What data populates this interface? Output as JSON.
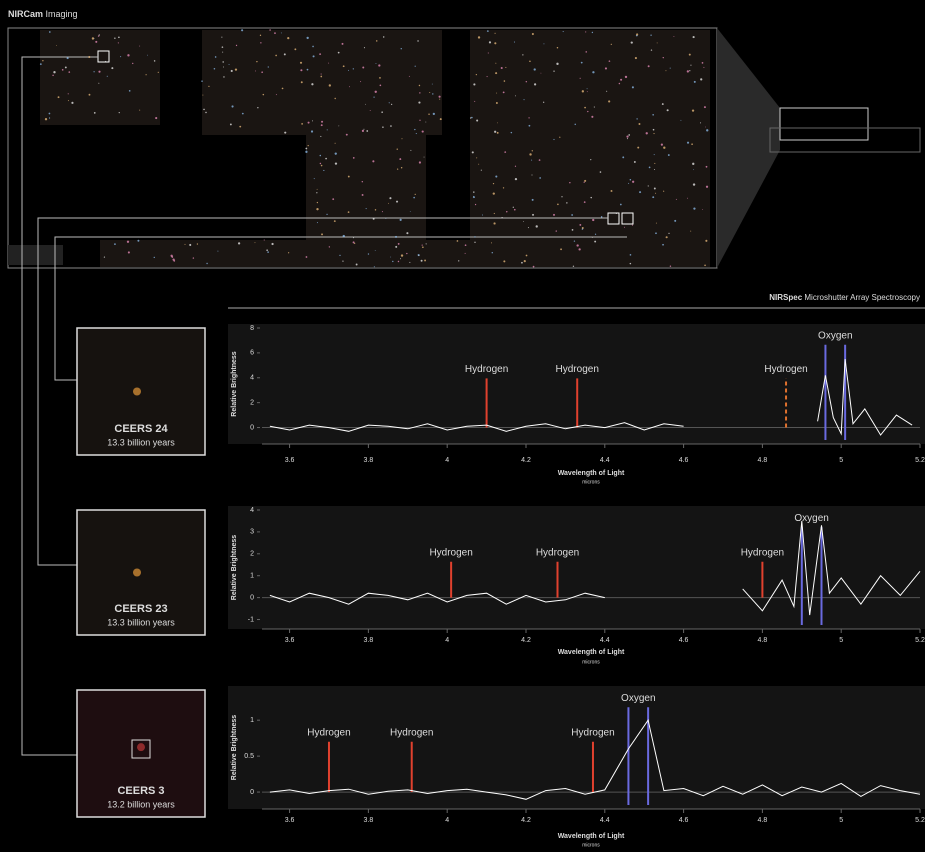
{
  "imaging": {
    "title_bold": "NIRCam",
    "title": "Imaging"
  },
  "spectroscopy": {
    "title_bold": "NIRSpec",
    "title": "Microshutter Array Spectroscopy"
  },
  "galaxies": [
    {
      "name": "CEERS 24",
      "age": "13.3 billion years"
    },
    {
      "name": "CEERS 23",
      "age": "13.3 billion years"
    },
    {
      "name": "CEERS 3",
      "age": "13.2 billion years"
    }
  ],
  "chart_data": [
    {
      "type": "line",
      "y_label": "Relative Brightness",
      "x_label": "Wavelength of Light",
      "x_unit": "microns",
      "xlim": [
        3.53,
        5.2
      ],
      "xticks": [
        3.6,
        3.8,
        4,
        4.2,
        4.4,
        4.6,
        4.8,
        5,
        5.2
      ],
      "ylim": [
        -1,
        8
      ],
      "yticks": [
        0,
        2,
        4,
        6,
        8
      ],
      "x": [
        3.55,
        3.6,
        3.65,
        3.7,
        3.75,
        3.8,
        3.85,
        3.9,
        3.95,
        4.0,
        4.05,
        4.1,
        4.15,
        4.2,
        4.25,
        4.3,
        4.35,
        4.4,
        4.45,
        4.5,
        4.55,
        4.6,
        4.75,
        4.94,
        4.96,
        4.98,
        5.0,
        5.01,
        5.03,
        5.06,
        5.1,
        5.14,
        5.18
      ],
      "series": [
        {
          "color": "#ffffff",
          "values": [
            0.1,
            -0.2,
            0.2,
            0.0,
            -0.3,
            0.2,
            0.1,
            -0.1,
            0.3,
            -0.2,
            0.1,
            0.2,
            -0.3,
            0.1,
            0.3,
            -0.1,
            0.2,
            0.0,
            0.4,
            -0.2,
            0.3,
            0.1,
            null,
            0.5,
            4.2,
            0.8,
            -0.5,
            5.5,
            0.3,
            1.5,
            -0.6,
            1.0,
            0.2
          ]
        }
      ],
      "lines": [
        {
          "label": "Hydrogen",
          "x": [
            4.1
          ],
          "color": "#e0412e"
        },
        {
          "label": "Hydrogen",
          "x": [
            4.33
          ],
          "color": "#e0412e"
        },
        {
          "label": "Hydrogen",
          "x": [
            4.86
          ],
          "color": "#e0712e",
          "dashed": true
        },
        {
          "label": "Oxygen",
          "x": [
            4.96,
            5.01
          ],
          "color": "#6a6ae0"
        }
      ]
    },
    {
      "type": "line",
      "y_label": "Relative Brightness",
      "x_label": "Wavelength of Light",
      "x_unit": "microns",
      "xlim": [
        3.53,
        5.2
      ],
      "xticks": [
        3.6,
        3.8,
        4,
        4.2,
        4.4,
        4.6,
        4.8,
        5,
        5.2
      ],
      "ylim": [
        -1.25,
        4
      ],
      "yticks": [
        -1,
        0,
        1,
        2,
        3,
        4
      ],
      "x": [
        3.55,
        3.6,
        3.65,
        3.7,
        3.75,
        3.8,
        3.85,
        3.9,
        3.95,
        4.0,
        4.05,
        4.1,
        4.15,
        4.2,
        4.25,
        4.3,
        4.35,
        4.4,
        4.55,
        4.75,
        4.8,
        4.85,
        4.88,
        4.9,
        4.92,
        4.95,
        4.97,
        5.0,
        5.05,
        5.1,
        5.15,
        5.2
      ],
      "series": [
        {
          "color": "#ffffff",
          "values": [
            0.1,
            -0.2,
            0.2,
            0.0,
            -0.3,
            0.2,
            0.1,
            -0.1,
            0.2,
            -0.2,
            0.1,
            0.2,
            -0.3,
            0.1,
            -0.2,
            -0.1,
            0.2,
            0.0,
            null,
            0.4,
            -0.6,
            0.8,
            -0.4,
            3.5,
            -0.8,
            3.3,
            0.2,
            0.9,
            -0.3,
            1.0,
            0.1,
            1.2
          ]
        }
      ],
      "lines": [
        {
          "label": "Hydrogen",
          "x": [
            4.01
          ],
          "color": "#e0412e"
        },
        {
          "label": "Hydrogen",
          "x": [
            4.28
          ],
          "color": "#e0412e"
        },
        {
          "label": "Hydrogen",
          "x": [
            4.8
          ],
          "color": "#e0412e"
        },
        {
          "label": "Oxygen",
          "x": [
            4.9,
            4.95
          ],
          "color": "#6a6ae0"
        }
      ]
    },
    {
      "type": "line",
      "y_label": "Relative Brightness",
      "x_label": "Wavelength of Light",
      "x_unit": "microns",
      "xlim": [
        3.53,
        5.2
      ],
      "xticks": [
        3.6,
        3.8,
        4,
        4.2,
        4.4,
        4.6,
        4.8,
        5,
        5.2
      ],
      "ylim": [
        -0.18,
        1.42
      ],
      "yticks": [
        0,
        0.5,
        1
      ],
      "x": [
        3.55,
        3.6,
        3.65,
        3.7,
        3.75,
        3.8,
        3.85,
        3.9,
        3.95,
        4.0,
        4.05,
        4.1,
        4.15,
        4.2,
        4.25,
        4.3,
        4.35,
        4.4,
        4.46,
        4.51,
        4.55,
        4.6,
        4.65,
        4.7,
        4.75,
        4.8,
        4.85,
        4.9,
        4.95,
        5.0,
        5.05,
        5.1,
        5.15,
        5.2
      ],
      "series": [
        {
          "color": "#ffffff",
          "values": [
            0.0,
            0.03,
            -0.02,
            0.02,
            0.04,
            -0.03,
            0.01,
            0.03,
            -0.02,
            0.02,
            0.04,
            0.0,
            -0.04,
            -0.1,
            0.02,
            0.05,
            -0.03,
            0.03,
            0.6,
            1.0,
            0.02,
            0.05,
            -0.05,
            0.08,
            -0.03,
            0.1,
            -0.05,
            0.07,
            0.0,
            0.12,
            -0.06,
            0.09,
            0.02,
            -0.03
          ]
        }
      ],
      "lines": [
        {
          "label": "Hydrogen",
          "x": [
            3.7
          ],
          "color": "#e0412e"
        },
        {
          "label": "Hydrogen",
          "x": [
            3.91
          ],
          "color": "#e0412e"
        },
        {
          "label": "Hydrogen",
          "x": [
            4.37
          ],
          "color": "#e0412e"
        },
        {
          "label": "Oxygen",
          "x": [
            4.46,
            4.51
          ],
          "color": "#6a6ae0"
        }
      ]
    }
  ]
}
